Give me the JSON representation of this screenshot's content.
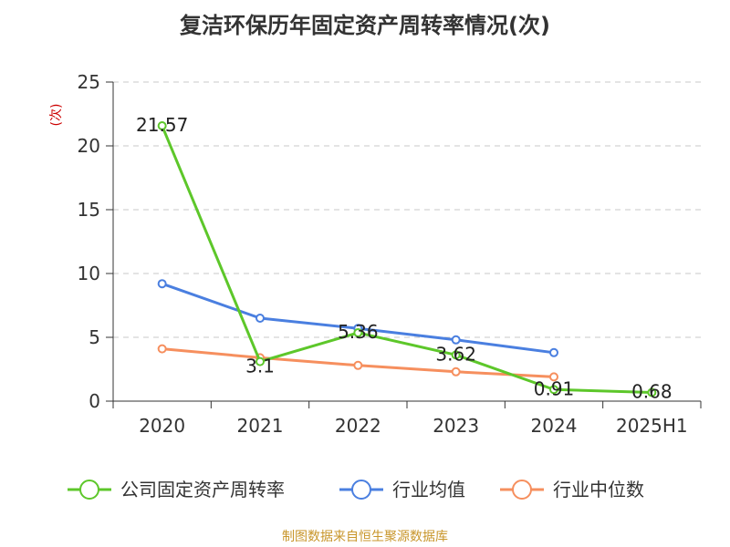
{
  "title": "复洁环保历年固定资产周转率情况(次)",
  "source": "制图数据来自恒生聚源数据库",
  "chart_data": {
    "type": "line",
    "title": "复洁环保历年固定资产周转率情况(次)",
    "ylabel": "(次)",
    "xlabel": "",
    "categories": [
      "2020",
      "2021",
      "2022",
      "2023",
      "2024",
      "2025H1"
    ],
    "ylim": [
      0,
      25
    ],
    "yticks": [
      0,
      5,
      10,
      15,
      20,
      25
    ],
    "grid": "horizontal-dashed",
    "legend_position": "bottom",
    "series": [
      {
        "name": "公司固定资产周转率",
        "color": "#5dc72a",
        "values": [
          21.57,
          3.1,
          5.36,
          3.62,
          0.91,
          0.68
        ],
        "labels": [
          "21.57",
          "3.1",
          "5.36",
          "3.62",
          "0.91",
          "0.68"
        ]
      },
      {
        "name": "行业均值",
        "color": "#4a7fe0",
        "values": [
          9.2,
          6.5,
          5.7,
          4.8,
          3.8,
          null
        ]
      },
      {
        "name": "行业中位数",
        "color": "#f68f5e",
        "values": [
          4.1,
          3.4,
          2.8,
          2.3,
          1.9,
          null
        ]
      }
    ]
  }
}
